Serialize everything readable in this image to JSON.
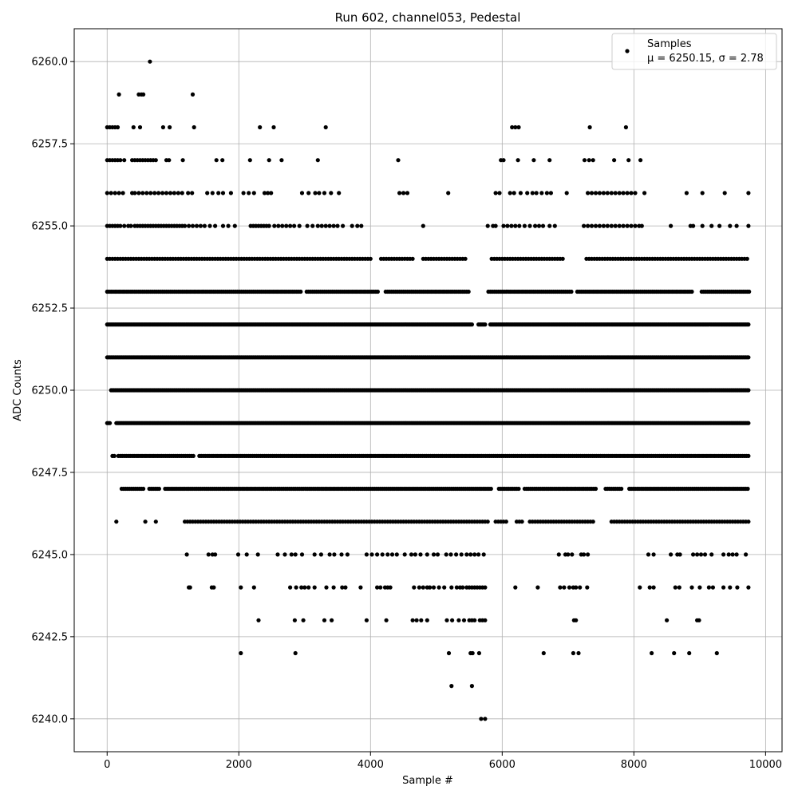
{
  "chart_data": {
    "type": "scatter",
    "title": "Run 602, channel053, Pedestal",
    "xlabel": "Sample #",
    "ylabel": "ADC Counts",
    "xlim": [
      -500,
      10250
    ],
    "ylim": [
      6239,
      6261
    ],
    "x_ticks": [
      0,
      2000,
      4000,
      6000,
      8000,
      10000
    ],
    "x_tick_labels": [
      "0",
      "2000",
      "4000",
      "6000",
      "8000",
      "10000"
    ],
    "y_ticks": [
      6240.0,
      6242.5,
      6245.0,
      6247.5,
      6250.0,
      6252.5,
      6255.0,
      6257.5,
      6260.0
    ],
    "y_tick_labels": [
      "6240.0",
      "6242.5",
      "6245.0",
      "6247.5",
      "6250.0",
      "6252.5",
      "6255.0",
      "6257.5",
      "6260.0"
    ],
    "grid": true,
    "legend_position": "top-right",
    "series": [
      {
        "name": "Samples",
        "color": "#000000",
        "sample_count": 9750,
        "mean": 6250.15,
        "sigma": 2.78,
        "bands": [
          {
            "y": 6260,
            "x": [
              650
            ]
          },
          {
            "y": 6259,
            "x": [
              180,
              480,
              520,
              550,
              1300
            ]
          },
          {
            "y": 6258,
            "x": [
              0,
              40,
              80,
              120,
              160,
              400,
              500,
              850,
              950,
              1320,
              2320,
              2530,
              3320,
              6150,
              6200,
              6250,
              7330,
              7880
            ]
          },
          {
            "y": 6257,
            "x": [
              0,
              40,
              80,
              120,
              160,
              200,
              260,
              380,
              420,
              460,
              500,
              540,
              580,
              620,
              660,
              700,
              740,
              900,
              940,
              1150,
              1660,
              1750,
              2170,
              2460,
              2650,
              3200,
              4420,
              5980,
              6020,
              6240,
              6480,
              6720,
              7250,
              7320,
              7380,
              7700,
              7920,
              8100
            ]
          },
          {
            "y": 6256,
            "x": [
              0,
              60,
              120,
              180,
              240,
              380,
              420,
              480,
              540,
              600,
              660,
              720,
              780,
              840,
              900,
              960,
              1020,
              1080,
              1140,
              1230,
              1290,
              1520,
              1600,
              1690,
              1760,
              1880,
              2070,
              2150,
              2230,
              2390,
              2440,
              2490,
              2960,
              3060,
              3160,
              3220,
              3300,
              3400,
              3520,
              4440,
              4500,
              4560,
              5180,
              5900,
              5960,
              6120,
              6180,
              6280,
              6380,
              6460,
              6520,
              6600,
              6680,
              6740,
              6980,
              7300,
              7360,
              7420,
              7480,
              7540,
              7600,
              7660,
              7720,
              7780,
              7840,
              7900,
              7960,
              8020,
              8160,
              8800,
              9040,
              9380,
              9740
            ]
          },
          {
            "y": 6255,
            "x": [
              0,
              40,
              80,
              120,
              160,
              200,
              260,
              320,
              360,
              420,
              460,
              500,
              540,
              580,
              620,
              660,
              700,
              740,
              780,
              820,
              860,
              900,
              940,
              980,
              1020,
              1060,
              1100,
              1140,
              1180,
              1240,
              1300,
              1360,
              1420,
              1480,
              1560,
              1640,
              1760,
              1840,
              1940,
              2180,
              2220,
              2260,
              2300,
              2340,
              2380,
              2420,
              2460,
              2540,
              2600,
              2660,
              2720,
              2780,
              2840,
              2920,
              3040,
              3120,
              3200,
              3260,
              3320,
              3380,
              3440,
              3500,
              3580,
              3720,
              3800,
              3860,
              4800,
              5780,
              5860,
              5900,
              6020,
              6080,
              6140,
              6200,
              6260,
              6340,
              6420,
              6500,
              6560,
              6620,
              6720,
              6800,
              7240,
              7300,
              7360,
              7420,
              7480,
              7540,
              7600,
              7660,
              7720,
              7780,
              7840,
              7900,
              7960,
              8020,
              8080,
              8120,
              8560,
              8860,
              8900,
              9040,
              9180,
              9300,
              9460,
              9560,
              9740
            ]
          },
          {
            "y": 6254,
            "x_range": [
              0,
              9750
            ],
            "step": 40,
            "gaps": [
              [
                4020,
                4120
              ],
              [
                4680,
                4760
              ],
              [
                5480,
                5560
              ],
              [
                5600,
                5800
              ],
              [
                6960,
                7240
              ]
            ]
          },
          {
            "y": 6253,
            "x_range": [
              0,
              9750
            ],
            "step": 30,
            "gaps": [
              [
                2960,
                3000
              ],
              [
                4140,
                4220
              ],
              [
                5520,
                5780
              ],
              [
                7060,
                7120
              ],
              [
                8900,
                9020
              ]
            ]
          },
          {
            "y": 6252,
            "x_range": [
              0,
              9750
            ],
            "step": 20,
            "gaps": [
              [
                5560,
                5620
              ],
              [
                5760,
                5800
              ]
            ]
          },
          {
            "y": 6251,
            "x_range": [
              0,
              9750
            ],
            "step": 20,
            "gaps": []
          },
          {
            "y": 6250,
            "x_range": [
              60,
              9750
            ],
            "step": 20,
            "gaps": []
          },
          {
            "y": 6249,
            "x_range": [
              0,
              9750
            ],
            "step": 20,
            "gaps": [
              [
                60,
                120
              ]
            ]
          },
          {
            "y": 6248,
            "x_range": [
              80,
              9750
            ],
            "step": 30,
            "gaps": [
              [
                120,
                150
              ],
              [
                1320,
                1380
              ]
            ]
          },
          {
            "y": 6247,
            "x_range": [
              220,
              9750
            ],
            "step": 30,
            "gaps": [
              [
                560,
                620
              ],
              [
                820,
                860
              ],
              [
                5860,
                5940
              ],
              [
                6280,
                6320
              ],
              [
                7440,
                7540
              ],
              [
                7840,
                7900
              ]
            ]
          },
          {
            "y": 6246,
            "x_range": [
              140,
              9750
            ],
            "step": 40,
            "gaps": [
              [
                180,
                260
              ],
              [
                300,
                540
              ],
              [
                600,
                720
              ],
              [
                780,
                1160
              ],
              [
                5800,
                5880
              ],
              [
                6100,
                6200
              ],
              [
                6320,
                6400
              ],
              [
                7420,
                7640
              ]
            ]
          },
          {
            "y": 6245,
            "x": [
              1210,
              1540,
              1600,
              1640,
              1990,
              2120,
              2290,
              2590,
              2700,
              2800,
              2860,
              2960,
              3150,
              3250,
              3380,
              3450,
              3560,
              3650,
              3940,
              4020,
              4100,
              4180,
              4260,
              4330,
              4400,
              4520,
              4620,
              4680,
              4760,
              4860,
              4960,
              5020,
              5150,
              5220,
              5300,
              5380,
              5460,
              5520,
              5580,
              5640,
              5720,
              6860,
              6960,
              7000,
              7060,
              7200,
              7240,
              7300,
              8220,
              8300,
              8560,
              8660,
              8700,
              8900,
              8960,
              9020,
              9080,
              9180,
              9360,
              9440,
              9500,
              9560,
              9700
            ]
          },
          {
            "y": 6244,
            "x": [
              1240,
              1260,
              1590,
              1620,
              2030,
              2230,
              2780,
              2870,
              2950,
              3000,
              3060,
              3150,
              3330,
              3440,
              3570,
              3620,
              3850,
              4100,
              4150,
              4220,
              4260,
              4300,
              4660,
              4740,
              4800,
              4860,
              4900,
              4960,
              5040,
              5120,
              5230,
              5310,
              5360,
              5400,
              5460,
              5500,
              5540,
              5580,
              5620,
              5660,
              5700,
              5740,
              6200,
              6540,
              6880,
              6940,
              7020,
              7080,
              7120,
              7180,
              7290,
              8090,
              8240,
              8300,
              8630,
              8690,
              8880,
              9000,
              9140,
              9200,
              9360,
              9460,
              9570,
              9740
            ]
          },
          {
            "y": 6243,
            "x": [
              2300,
              2850,
              2980,
              3300,
              3410,
              3940,
              4240,
              4640,
              4700,
              4770,
              4860,
              5160,
              5240,
              5340,
              5420,
              5500,
              5540,
              5580,
              5660,
              5700,
              5740,
              7090,
              7120,
              8500,
              8960,
              8990
            ]
          },
          {
            "y": 6242,
            "x": [
              2030,
              2860,
              5190,
              5520,
              5550,
              5650,
              6630,
              7080,
              7160,
              8270,
              8610,
              8840,
              9260
            ]
          },
          {
            "y": 6241,
            "x": [
              5230,
              5540
            ]
          },
          {
            "y": 6240,
            "x": [
              5680,
              5740
            ]
          }
        ]
      }
    ],
    "legend": {
      "series_label": "Samples",
      "stats_label": "μ = 6250.15, σ = 2.78"
    }
  }
}
